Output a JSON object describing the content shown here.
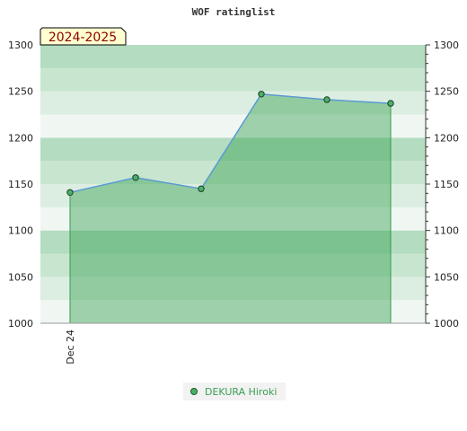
{
  "chart_data": {
    "type": "area",
    "title": "WOF ratinglist",
    "season_label": "2024-2025",
    "x_tick_labels": [
      "Dec 24"
    ],
    "ylim": [
      1000,
      1300
    ],
    "y_ticks": [
      1000,
      1050,
      1100,
      1150,
      1200,
      1250,
      1300
    ],
    "grid": true,
    "legend_position": "bottom",
    "series": [
      {
        "name": "DEKURA Hiroki",
        "color": "#2e9e4a",
        "values": [
          1141,
          1157,
          1145,
          1247,
          1241,
          1237
        ]
      }
    ]
  }
}
